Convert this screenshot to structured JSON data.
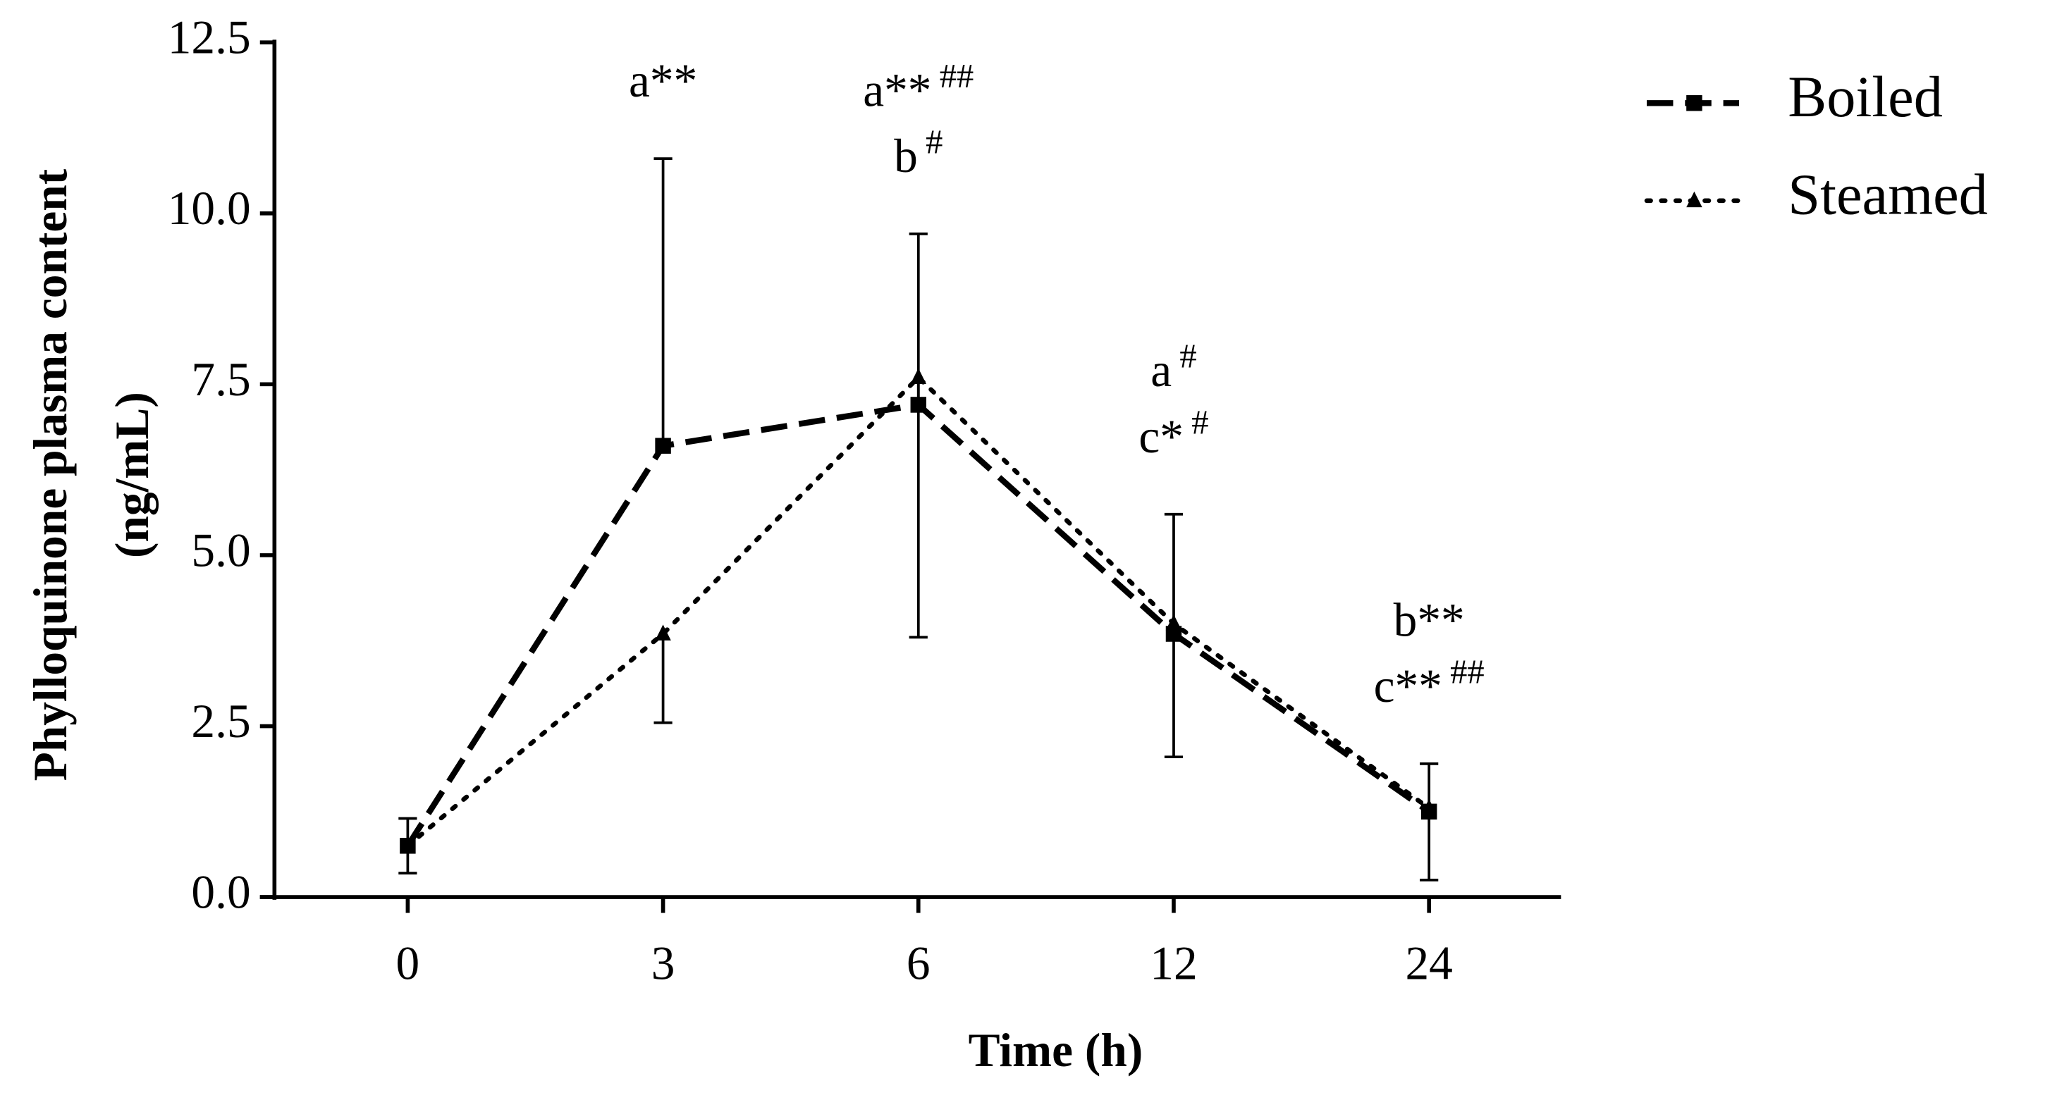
{
  "chart_data": {
    "type": "line",
    "ylabel": [
      "Phylloquinone plasma content",
      "(ng/mL)"
    ],
    "xlabel": "Time (h)",
    "categories": [
      "0",
      "3",
      "6",
      "12",
      "24"
    ],
    "series": [
      {
        "name": "Boiled",
        "color": "#000000",
        "marker": "square",
        "style": "dashed",
        "error_direction": "up",
        "values": [
          0.75,
          6.6,
          7.2,
          3.85,
          1.25
        ],
        "errors": [
          0.4,
          4.2,
          2.5,
          1.75,
          0.7
        ]
      },
      {
        "name": "Steamed",
        "color": "#000000",
        "marker": "triangle",
        "style": "dotted",
        "error_direction": "down",
        "values": [
          0.75,
          3.85,
          7.6,
          4.0,
          1.3
        ],
        "errors": [
          0.4,
          1.3,
          3.8,
          1.95,
          1.05
        ]
      }
    ],
    "ylim": [
      0,
      12.5
    ],
    "yticks": [
      {
        "value": 0,
        "label": "0.0"
      },
      2.5,
      {
        "value": 5,
        "label": "5.0"
      },
      7.5,
      {
        "value": 10,
        "label": "10.0"
      },
      12.5
    ],
    "annotations": [
      {
        "x": "3",
        "lines": [
          {
            "text": "a**"
          }
        ]
      },
      {
        "x": "6",
        "lines": [
          {
            "text": "a**",
            "sup": "##"
          },
          {
            "text": "b",
            "sup": "#"
          }
        ]
      },
      {
        "x": "12",
        "lines": [
          {
            "text": "a",
            "sup": "#"
          },
          {
            "text": "c*",
            "sup": "#"
          }
        ]
      },
      {
        "x": "24",
        "lines": [
          {
            "text": "b**"
          },
          {
            "text": "c**",
            "sup": "##"
          }
        ]
      }
    ],
    "legend": "top-right"
  }
}
